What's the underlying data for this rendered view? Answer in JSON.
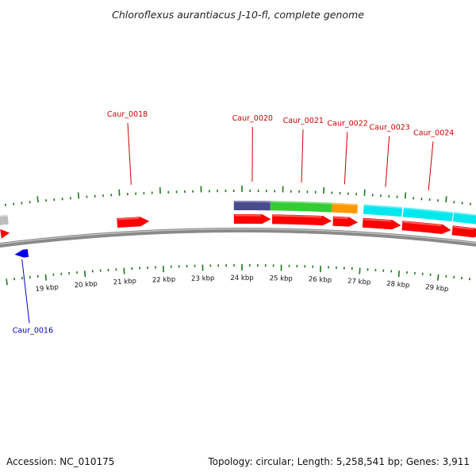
{
  "title": "Chloroflexus aurantiacus J-10-fl, complete genome",
  "footer": {
    "accession": "Accession: NC_010175",
    "summary": "Topology: circular; Length: 5,258,541 bp; Genes: 3,911"
  },
  "colors": {
    "background": "#ffffff",
    "backbone": "#8a8a8a",
    "tick": "#1a7a1a",
    "forward_gene": "#ff0000",
    "reverse_gene": "#0000ee",
    "label_forward": "#cc0000",
    "label_reverse": "#0000cc",
    "cog_gray": "#bdbdbd",
    "cog_navy": "#4a4a8e",
    "cog_green": "#33cc33",
    "cog_orange": "#ff9900",
    "cog_cyan": "#00e8ee"
  },
  "scale": {
    "unit_label": "kbp",
    "ticks": [
      {
        "kbp": 19,
        "label": "19 kbp"
      },
      {
        "kbp": 20,
        "label": "20 kbp"
      },
      {
        "kbp": 21,
        "label": "21 kbp"
      },
      {
        "kbp": 22,
        "label": "22 kbp"
      },
      {
        "kbp": 23,
        "label": "23 kbp"
      },
      {
        "kbp": 24,
        "label": "24 kbp"
      },
      {
        "kbp": 25,
        "label": "25 kbp"
      },
      {
        "kbp": 26,
        "label": "26 kbp"
      },
      {
        "kbp": 27,
        "label": "27 kbp"
      },
      {
        "kbp": 28,
        "label": "28 kbp"
      },
      {
        "kbp": 29,
        "label": "29 kbp"
      }
    ]
  },
  "cog_blocks": [
    {
      "start_kbp": 18.0,
      "end_kbp": 18.22,
      "color": "#bdbdbd"
    },
    {
      "start_kbp": 23.8,
      "end_kbp": 24.7,
      "color": "#4a4a8e"
    },
    {
      "start_kbp": 24.7,
      "end_kbp": 26.22,
      "color": "#33cc33"
    },
    {
      "start_kbp": 26.22,
      "end_kbp": 26.85,
      "color": "#ff9900"
    },
    {
      "start_kbp": 27.0,
      "end_kbp": 27.95,
      "color": "#00e8ee"
    },
    {
      "start_kbp": 27.98,
      "end_kbp": 29.2,
      "color": "#00e8ee"
    },
    {
      "start_kbp": 29.22,
      "end_kbp": 30.0,
      "color": "#00e8ee"
    }
  ],
  "genes": [
    {
      "locus": "",
      "start_kbp": 18.0,
      "end_kbp": 18.22,
      "strand": "+"
    },
    {
      "locus": "Caur_0016",
      "start_kbp": 18.28,
      "end_kbp": 18.62,
      "strand": "-"
    },
    {
      "locus": "Caur_0018",
      "start_kbp": 20.9,
      "end_kbp": 21.7,
      "strand": "+"
    },
    {
      "locus": "Caur_0020",
      "start_kbp": 23.8,
      "end_kbp": 24.72,
      "strand": "+"
    },
    {
      "locus": "Caur_0021",
      "start_kbp": 24.75,
      "end_kbp": 26.23,
      "strand": "+"
    },
    {
      "locus": "Caur_0022",
      "start_kbp": 26.26,
      "end_kbp": 26.88,
      "strand": "+"
    },
    {
      "locus": "Caur_0023",
      "start_kbp": 27.0,
      "end_kbp": 27.95,
      "strand": "+"
    },
    {
      "locus": "Caur_0024",
      "start_kbp": 27.98,
      "end_kbp": 29.2,
      "strand": "+"
    },
    {
      "locus": "",
      "start_kbp": 29.23,
      "end_kbp": 30.0,
      "strand": "+"
    }
  ],
  "gene_labels": [
    {
      "text": "Caur_0016",
      "anchor_kbp": 18.45,
      "strand": "-"
    },
    {
      "text": "Caur_0018",
      "anchor_kbp": 21.3,
      "strand": "+"
    },
    {
      "text": "Caur_0020",
      "anchor_kbp": 24.25,
      "strand": "+"
    },
    {
      "text": "Caur_0021",
      "anchor_kbp": 25.45,
      "strand": "+"
    },
    {
      "text": "Caur_0022",
      "anchor_kbp": 26.5,
      "strand": "+"
    },
    {
      "text": "Caur_0023",
      "anchor_kbp": 27.5,
      "strand": "+"
    },
    {
      "text": "Caur_0024",
      "anchor_kbp": 28.55,
      "strand": "+"
    }
  ]
}
